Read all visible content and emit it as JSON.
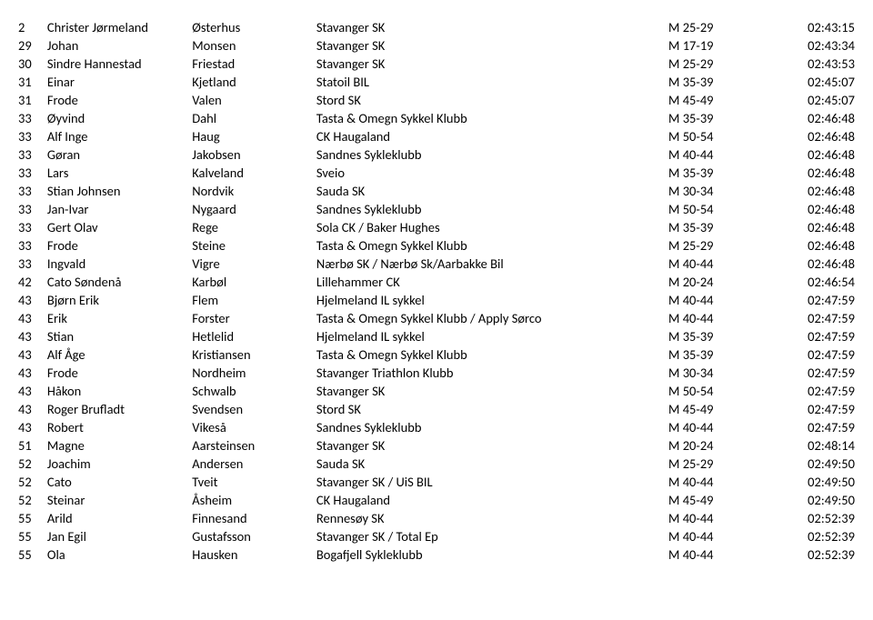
{
  "rows": [
    {
      "pos": "2",
      "first": "Christer Jørmeland",
      "last": "Østerhus",
      "club": "Stavanger SK",
      "cat": "M 25-29",
      "time": "02:43:15"
    },
    {
      "pos": "29",
      "first": "Johan",
      "last": "Monsen",
      "club": "Stavanger SK",
      "cat": "M 17-19",
      "time": "02:43:34"
    },
    {
      "pos": "30",
      "first": "Sindre Hannestad",
      "last": "Friestad",
      "club": "Stavanger SK",
      "cat": "M 25-29",
      "time": "02:43:53"
    },
    {
      "pos": "31",
      "first": "Einar",
      "last": "Kjetland",
      "club": "Statoil BIL",
      "cat": "M 35-39",
      "time": "02:45:07"
    },
    {
      "pos": "31",
      "first": "Frode",
      "last": "Valen",
      "club": "Stord SK",
      "cat": "M 45-49",
      "time": "02:45:07"
    },
    {
      "pos": "33",
      "first": "Øyvind",
      "last": "Dahl",
      "club": "Tasta & Omegn Sykkel Klubb",
      "cat": "M 35-39",
      "time": "02:46:48"
    },
    {
      "pos": "33",
      "first": "Alf Inge",
      "last": "Haug",
      "club": "CK Haugaland",
      "cat": "M 50-54",
      "time": "02:46:48"
    },
    {
      "pos": "33",
      "first": "Gøran",
      "last": "Jakobsen",
      "club": "Sandnes Sykleklubb",
      "cat": "M 40-44",
      "time": "02:46:48"
    },
    {
      "pos": "33",
      "first": "Lars",
      "last": "Kalveland",
      "club": "Sveio",
      "cat": "M 35-39",
      "time": "02:46:48"
    },
    {
      "pos": "33",
      "first": "Stian Johnsen",
      "last": "Nordvik",
      "club": "Sauda SK",
      "cat": "M 30-34",
      "time": "02:46:48"
    },
    {
      "pos": "33",
      "first": "Jan-Ivar",
      "last": "Nygaard",
      "club": "Sandnes Sykleklubb",
      "cat": "M 50-54",
      "time": "02:46:48"
    },
    {
      "pos": "33",
      "first": "Gert Olav",
      "last": "Rege",
      "club": "Sola CK / Baker Hughes",
      "cat": "M 35-39",
      "time": "02:46:48"
    },
    {
      "pos": "33",
      "first": "Frode",
      "last": "Steine",
      "club": "Tasta & Omegn Sykkel Klubb",
      "cat": "M 25-29",
      "time": "02:46:48"
    },
    {
      "pos": "33",
      "first": "Ingvald",
      "last": "Vigre",
      "club": "Nærbø SK / Nærbø Sk/Aarbakke Bil",
      "cat": "M 40-44",
      "time": "02:46:48"
    },
    {
      "pos": "42",
      "first": "Cato Søndenå",
      "last": "Karbøl",
      "club": "Lillehammer CK",
      "cat": "M 20-24",
      "time": "02:46:54"
    },
    {
      "pos": "43",
      "first": "Bjørn Erik",
      "last": "Flem",
      "club": "Hjelmeland IL sykkel",
      "cat": "M 40-44",
      "time": "02:47:59"
    },
    {
      "pos": "43",
      "first": "Erik",
      "last": "Forster",
      "club": "Tasta & Omegn Sykkel Klubb / Apply Sørco",
      "cat": "M 40-44",
      "time": "02:47:59"
    },
    {
      "pos": "43",
      "first": "Stian",
      "last": "Hetlelid",
      "club": "Hjelmeland IL sykkel",
      "cat": "M 35-39",
      "time": "02:47:59"
    },
    {
      "pos": "43",
      "first": "Alf Åge",
      "last": "Kristiansen",
      "club": "Tasta & Omegn Sykkel Klubb",
      "cat": "M 35-39",
      "time": "02:47:59"
    },
    {
      "pos": "43",
      "first": "Frode",
      "last": "Nordheim",
      "club": "Stavanger Triathlon Klubb",
      "cat": "M 30-34",
      "time": "02:47:59"
    },
    {
      "pos": "43",
      "first": "Håkon",
      "last": "Schwalb",
      "club": "Stavanger SK",
      "cat": "M 50-54",
      "time": "02:47:59"
    },
    {
      "pos": "43",
      "first": "Roger Brufladt",
      "last": "Svendsen",
      "club": "Stord SK",
      "cat": "M 45-49",
      "time": "02:47:59"
    },
    {
      "pos": "43",
      "first": "Robert",
      "last": "Vikeså",
      "club": "Sandnes Sykleklubb",
      "cat": "M 40-44",
      "time": "02:47:59"
    },
    {
      "pos": "51",
      "first": "Magne",
      "last": "Aarsteinsen",
      "club": "Stavanger SK",
      "cat": "M 20-24",
      "time": "02:48:14"
    },
    {
      "pos": "52",
      "first": "Joachim",
      "last": "Andersen",
      "club": "Sauda SK",
      "cat": "M 25-29",
      "time": "02:49:50"
    },
    {
      "pos": "52",
      "first": "Cato",
      "last": "Tveit",
      "club": "Stavanger SK / UiS BIL",
      "cat": "M 40-44",
      "time": "02:49:50"
    },
    {
      "pos": "52",
      "first": "Steinar",
      "last": "Åsheim",
      "club": "CK Haugaland",
      "cat": "M 45-49",
      "time": "02:49:50"
    },
    {
      "pos": "55",
      "first": "Arild",
      "last": "Finnesand",
      "club": "Rennesøy SK",
      "cat": "M 40-44",
      "time": "02:52:39"
    },
    {
      "pos": "55",
      "first": "Jan Egil",
      "last": "Gustafsson",
      "club": "Stavanger SK / Total Ep",
      "cat": "M 40-44",
      "time": "02:52:39"
    },
    {
      "pos": "55",
      "first": "Ola",
      "last": "Hausken",
      "club": "Bogafjell Sykleklubb",
      "cat": "M 40-44",
      "time": "02:52:39"
    }
  ]
}
